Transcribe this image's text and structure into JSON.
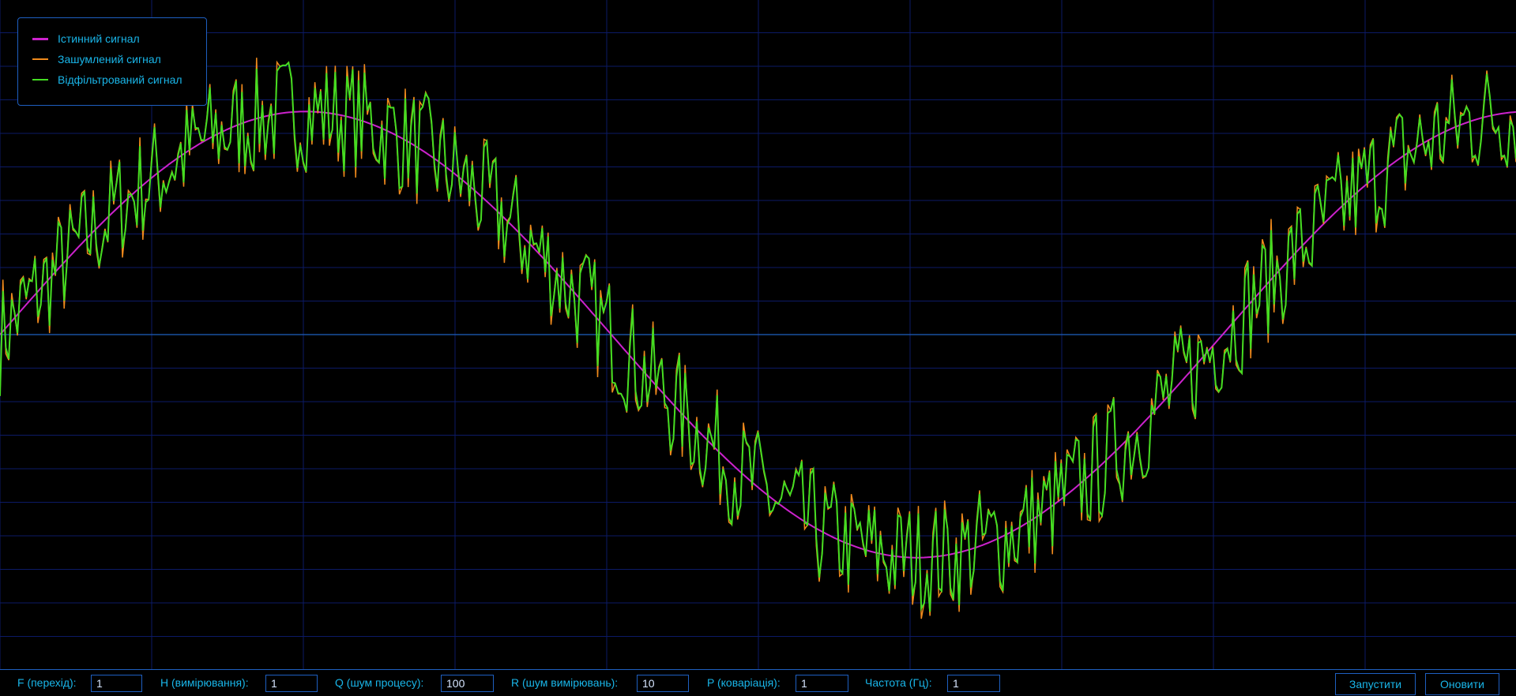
{
  "legend": {
    "items": [
      {
        "label": "Істинний сигнал",
        "color": "#cc22cc"
      },
      {
        "label": "Зашумлений сигнал",
        "color": "#f08a1c"
      },
      {
        "label": "Відфільтрований сигнал",
        "color": "#44dd22"
      }
    ]
  },
  "controls": {
    "fields": [
      {
        "label": "F (перехід):",
        "value": "1"
      },
      {
        "label": "H (вимірювання):",
        "value": "1"
      },
      {
        "label": "Q (шум процесу):",
        "value": "100"
      },
      {
        "label": "R (шум вимірювань):",
        "value": "10"
      },
      {
        "label": "P (коваріація):",
        "value": "1"
      },
      {
        "label": "Частота (Гц):",
        "value": "1"
      }
    ],
    "start_label": "Запустити",
    "refresh_label": "Оновити"
  },
  "colors": {
    "background": "#000000",
    "grid": "#0c1a66",
    "axis": "#1e5fc0",
    "text": "#19b5e8"
  },
  "chart_data": {
    "type": "line",
    "title": "",
    "xlabel": "",
    "ylabel": "",
    "grid": true,
    "legend_position": "top-left",
    "x_range": [
      0,
      1.24
    ],
    "y_range": [
      -1.5,
      1.5
    ],
    "series": [
      {
        "name": "Істинний сигнал",
        "function": "sin(2*pi*1*t)",
        "frequency_hz": 1,
        "amplitude": 1
      },
      {
        "name": "Зашумлений сигнал",
        "description_values": "sin(2*pi*t) plus random measurement noise (about ±0.25)"
      },
      {
        "name": "Відфільтрований сигнал",
        "description_values": "Kalman-filtered estimate closely tracking the noisy signal"
      }
    ]
  }
}
